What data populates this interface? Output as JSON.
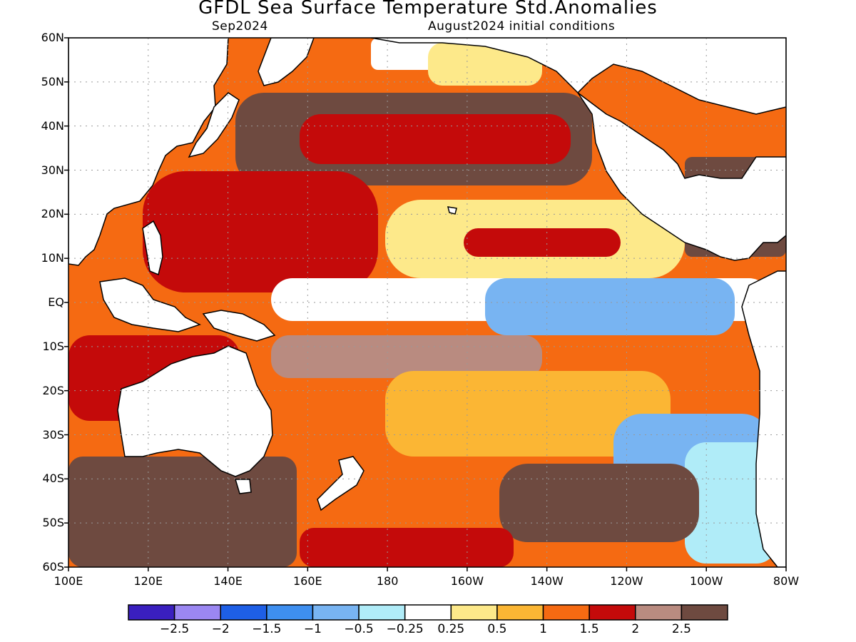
{
  "title": "GFDL Sea Surface Temperature Std.Anomalies",
  "subtitle_left": "Sep2024",
  "subtitle_right": "August2024 initial conditions",
  "lat_labels": [
    "60N",
    "50N",
    "40N",
    "30N",
    "20N",
    "10N",
    "EQ",
    "10S",
    "20S",
    "30S",
    "40S",
    "50S",
    "60S"
  ],
  "lon_labels": [
    "100E",
    "120E",
    "140E",
    "160E",
    "180",
    "160W",
    "140W",
    "120W",
    "100W",
    "80W"
  ],
  "colorbar": {
    "colors": [
      "#3a1fbf",
      "#9b87f2",
      "#1e5fe6",
      "#3e8ff0",
      "#78b4f2",
      "#b0ecf8",
      "#ffffff",
      "#fde98a",
      "#fbb634",
      "#f56a12",
      "#c40a0a",
      "#b98b80",
      "#6e4a40"
    ],
    "labels": [
      "−2.5",
      "−2",
      "−1.5",
      "−1",
      "−0.5",
      "−0.25",
      "0.25",
      "0.5",
      "1",
      "1.5",
      "2",
      "2.5"
    ]
  }
}
